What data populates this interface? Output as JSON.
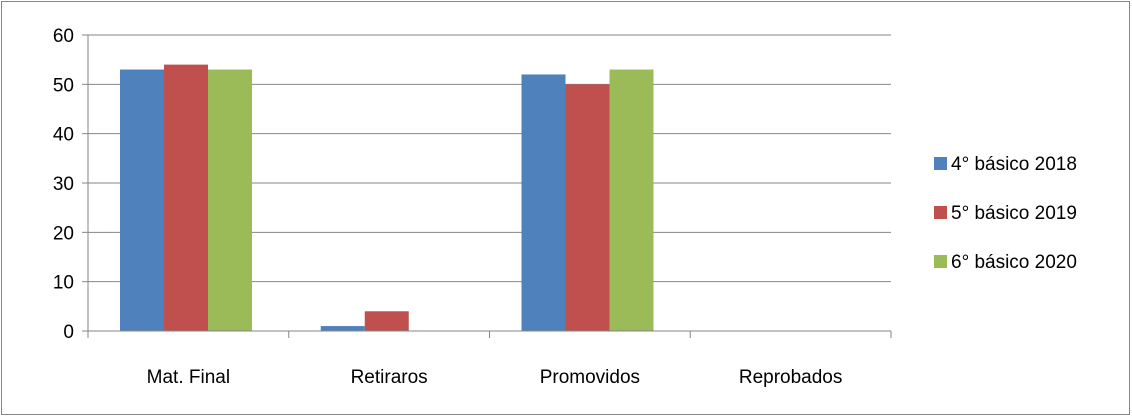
{
  "chart_data": {
    "type": "bar",
    "title": "",
    "xlabel": "",
    "ylabel": "",
    "categories": [
      "Mat. Final",
      "Retiraros",
      "Promovidos",
      "Reprobados"
    ],
    "series": [
      {
        "name": "4° básico 2018",
        "values": [
          53,
          1,
          52,
          0
        ],
        "color": "#4f81bd"
      },
      {
        "name": "5° básico 2019",
        "values": [
          54,
          4,
          50,
          0
        ],
        "color": "#c0504d"
      },
      {
        "name": "6° básico 2020",
        "values": [
          53,
          0,
          53,
          0
        ],
        "color": "#9bbb59"
      }
    ],
    "ylim": [
      0,
      60
    ],
    "yticks": [
      0,
      10,
      20,
      30,
      40,
      50,
      60
    ],
    "grid": true,
    "legend_position": "right"
  }
}
